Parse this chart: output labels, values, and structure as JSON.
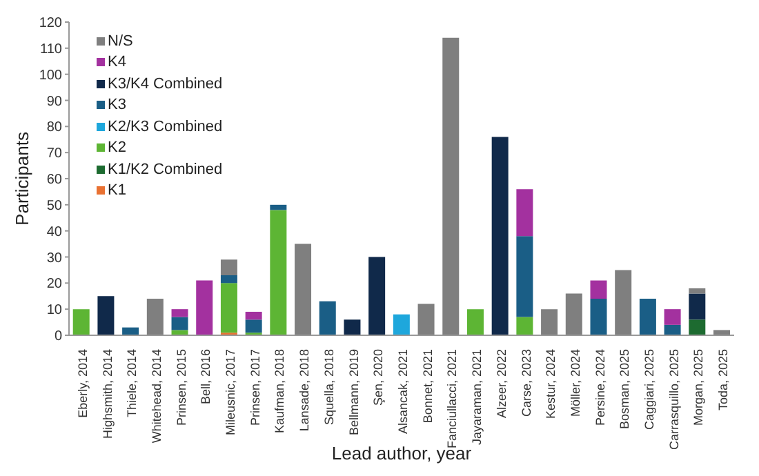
{
  "chart_data": {
    "type": "bar",
    "stacked": true,
    "xlabel": "Lead author, year",
    "ylabel": "Participants",
    "categories": [
      "Eberly, 2014",
      "Highsmith, 2014",
      "Thiele, 2014",
      "Whitehead, 2014",
      "Prinsen, 2015",
      "Bell, 2016",
      "Mileusnic, 2017",
      "Prinsen, 2017",
      "Kaufman, 2018",
      "Lansade, 2018",
      "Squella, 2018",
      "Bellmann, 2019",
      "Şen, 2020",
      "Alsancak, 2021",
      "Bonnet, 2021",
      "Fanciullacci, 2021",
      "Jayaraman, 2021",
      "Alzeer, 2022",
      "Carse, 2023",
      "Kestur, 2024",
      "Möller, 2024",
      "Persine, 2024",
      "Bosman, 2025",
      "Caggiari, 2025",
      "Carrasquillo, 2025",
      "Morgan, 2025",
      "Toda, 2025"
    ],
    "series": [
      {
        "name": "K1",
        "color": "#e97132",
        "values": [
          null,
          null,
          null,
          null,
          null,
          null,
          1,
          null,
          null,
          null,
          null,
          null,
          null,
          null,
          null,
          null,
          null,
          null,
          null,
          null,
          null,
          null,
          null,
          null,
          null,
          null,
          null
        ]
      },
      {
        "name": "K1/K2 Combined",
        "color": "#1d6b30",
        "values": [
          null,
          null,
          null,
          null,
          null,
          null,
          null,
          null,
          null,
          null,
          null,
          null,
          null,
          null,
          null,
          null,
          null,
          null,
          null,
          null,
          null,
          null,
          null,
          null,
          null,
          6,
          null
        ]
      },
      {
        "name": "K2",
        "color": "#5db534",
        "values": [
          10,
          null,
          null,
          null,
          2,
          null,
          19,
          1,
          48,
          null,
          null,
          null,
          null,
          null,
          null,
          null,
          10,
          null,
          7,
          null,
          null,
          null,
          null,
          null,
          null,
          null,
          null
        ]
      },
      {
        "name": "K2/K3 Combined",
        "color": "#1ea7dc",
        "values": [
          null,
          null,
          null,
          null,
          null,
          null,
          null,
          null,
          null,
          null,
          null,
          null,
          null,
          8,
          null,
          null,
          null,
          null,
          null,
          null,
          null,
          null,
          null,
          null,
          null,
          null,
          null
        ]
      },
      {
        "name": "K3",
        "color": "#1a5e86",
        "values": [
          null,
          null,
          3,
          null,
          5,
          null,
          3,
          5,
          2,
          null,
          13,
          null,
          null,
          null,
          null,
          null,
          null,
          null,
          31,
          null,
          null,
          14,
          null,
          14,
          4,
          null,
          null
        ]
      },
      {
        "name": "K3/K4 Combined",
        "color": "#10294a",
        "values": [
          null,
          15,
          null,
          null,
          null,
          null,
          null,
          null,
          null,
          null,
          null,
          6,
          30,
          null,
          null,
          null,
          null,
          76,
          null,
          null,
          null,
          null,
          null,
          null,
          null,
          10,
          null
        ]
      },
      {
        "name": "K4",
        "color": "#a3319f",
        "values": [
          null,
          null,
          null,
          null,
          3,
          21,
          null,
          3,
          null,
          null,
          null,
          null,
          null,
          null,
          null,
          null,
          null,
          null,
          18,
          null,
          null,
          7,
          null,
          null,
          6,
          null,
          null
        ]
      },
      {
        "name": "N/S",
        "color": "#7f7f7f",
        "values": [
          null,
          null,
          null,
          14,
          null,
          null,
          6,
          null,
          null,
          35,
          null,
          null,
          null,
          null,
          12,
          114,
          null,
          null,
          null,
          10,
          16,
          null,
          25,
          null,
          null,
          2,
          2
        ]
      }
    ],
    "ylim": [
      0,
      120
    ],
    "yticks": [
      0,
      10,
      20,
      30,
      40,
      50,
      60,
      70,
      80,
      90,
      100,
      110,
      120
    ],
    "grid": false,
    "legend": "top left"
  }
}
